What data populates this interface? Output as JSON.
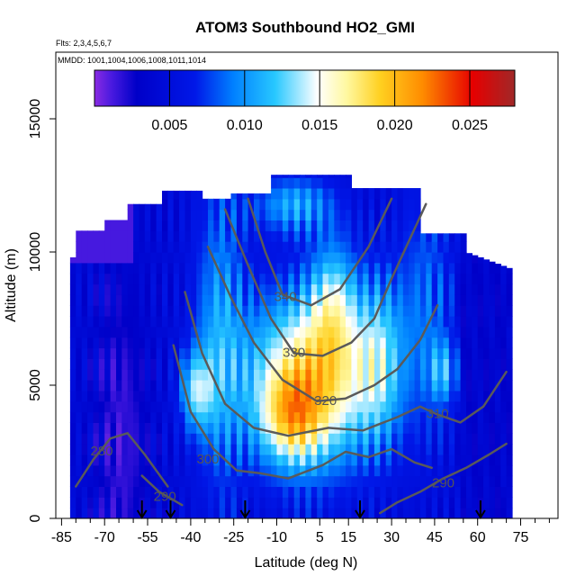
{
  "chart_data": {
    "type": "heatmap",
    "title": "ATOM3 Southbound HO2_GMI",
    "flights_label": "Flts: 2,3,4,5,6,7",
    "mmdd_label": "MMDD: 1001,1004,1006,1008,1011,1014",
    "xlabel": "Latitude (deg N)",
    "ylabel": "Altitude (m)",
    "xlim": [
      -87,
      88
    ],
    "ylim": [
      0,
      17500
    ],
    "x_ticks": [
      -85,
      -70,
      -55,
      -40,
      -25,
      -10,
      5,
      15,
      30,
      45,
      60,
      75
    ],
    "x_tick_labels": [
      "-85",
      "-70",
      "-55",
      "-40",
      "-25",
      "-10",
      "5",
      "15",
      "30",
      "45",
      "60",
      "75"
    ],
    "y_ticks": [
      0,
      5000,
      10000,
      15000
    ],
    "y_tick_labels": [
      "0",
      "5000",
      "10000",
      "15000"
    ],
    "colorbar": {
      "range": [
        0,
        0.028
      ],
      "ticks": [
        0.005,
        0.01,
        0.015,
        0.02,
        0.025
      ],
      "tick_labels": [
        "0.005",
        "0.010",
        "0.015",
        "0.020",
        "0.025"
      ],
      "colors": [
        "#8a2be2",
        "#0000c8",
        "#0050ff",
        "#1ec8ff",
        "#ffffff",
        "#ffe040",
        "#ff8000",
        "#e00000",
        "#a02020"
      ]
    },
    "isentropes": [
      {
        "label": "280",
        "label_at": [
          -71,
          2500
        ],
        "points": [
          [
            -80,
            1200
          ],
          [
            -74,
            2200
          ],
          [
            -68,
            3000
          ],
          [
            -62,
            3200
          ],
          [
            -56,
            2400
          ],
          [
            -48,
            1200
          ]
        ]
      },
      {
        "label": "290",
        "label_at": [
          -49,
          800
        ],
        "points": [
          [
            -57,
            1600
          ],
          [
            -51,
            1000
          ],
          [
            -43,
            500
          ]
        ]
      },
      {
        "label": "300",
        "label_at": [
          -34,
          2200
        ],
        "points": [
          [
            -46,
            6500
          ],
          [
            -40,
            4000
          ],
          [
            -32,
            2600
          ],
          [
            -24,
            1800
          ],
          [
            -16,
            1700
          ],
          [
            -6,
            1500
          ],
          [
            6,
            2000
          ],
          [
            14,
            2500
          ],
          [
            22,
            2300
          ],
          [
            30,
            2600
          ],
          [
            38,
            2100
          ],
          [
            44,
            1900
          ]
        ]
      },
      {
        "label": "290",
        "label_at": [
          48,
          1300
        ],
        "points": [
          [
            26,
            200
          ],
          [
            32,
            600
          ],
          [
            40,
            1000
          ],
          [
            48,
            1500
          ],
          [
            56,
            1900
          ],
          [
            64,
            2400
          ],
          [
            70,
            2800
          ]
        ]
      },
      {
        "label": "310",
        "label_at": [
          46,
          3900
        ],
        "points": [
          [
            -42,
            8500
          ],
          [
            -36,
            6200
          ],
          [
            -28,
            4300
          ],
          [
            -18,
            3400
          ],
          [
            -6,
            3100
          ],
          [
            8,
            3400
          ],
          [
            20,
            3300
          ],
          [
            32,
            3800
          ],
          [
            40,
            4200
          ],
          [
            46,
            3900
          ],
          [
            54,
            3600
          ],
          [
            62,
            4200
          ],
          [
            70,
            5500
          ]
        ]
      },
      {
        "label": "320",
        "label_at": [
          7,
          4400
        ],
        "points": [
          [
            -34,
            10200
          ],
          [
            -26,
            8300
          ],
          [
            -18,
            6600
          ],
          [
            -8,
            5200
          ],
          [
            4,
            4400
          ],
          [
            14,
            4500
          ],
          [
            24,
            5000
          ],
          [
            32,
            5600
          ],
          [
            40,
            6700
          ],
          [
            46,
            8000
          ]
        ]
      },
      {
        "label": "330",
        "label_at": [
          -4,
          6200
        ],
        "points": [
          [
            -28,
            11600
          ],
          [
            -20,
            9500
          ],
          [
            -12,
            7500
          ],
          [
            -4,
            6200
          ],
          [
            6,
            6100
          ],
          [
            16,
            6600
          ],
          [
            24,
            7500
          ],
          [
            30,
            9000
          ],
          [
            36,
            10400
          ],
          [
            42,
            11800
          ]
        ]
      },
      {
        "label": "340",
        "label_at": [
          -7,
          8300
        ],
        "points": [
          [
            -20,
            12000
          ],
          [
            -14,
            10000
          ],
          [
            -8,
            8400
          ],
          [
            2,
            8000
          ],
          [
            12,
            8600
          ],
          [
            22,
            10200
          ],
          [
            30,
            12000
          ]
        ]
      }
    ],
    "flight_markers": [
      -57,
      -47,
      -21,
      19,
      61
    ]
  }
}
